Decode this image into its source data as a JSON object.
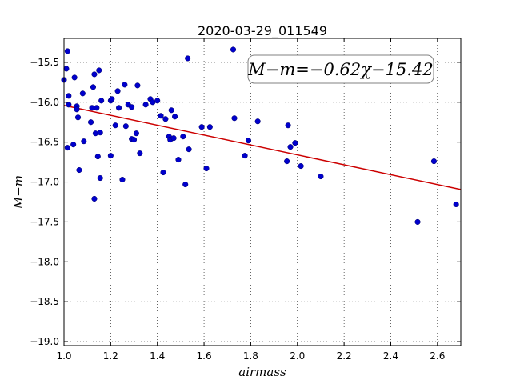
{
  "chart_data": {
    "type": "scatter",
    "title": "2020-03-29_011549",
    "xlabel": "airmass",
    "ylabel": "M−m",
    "xlim": [
      1.0,
      2.7
    ],
    "ylim": [
      -19.05,
      -15.2
    ],
    "x_ticks": [
      1.0,
      1.2,
      1.4,
      1.6,
      1.8,
      2.0,
      2.2,
      2.4,
      2.6
    ],
    "x_tick_labels": [
      "1.0",
      "1.2",
      "1.4",
      "1.6",
      "1.8",
      "2.0",
      "2.2",
      "2.4",
      "2.6"
    ],
    "y_ticks": [
      -15.5,
      -16.0,
      -16.5,
      -17.0,
      -17.5,
      -18.0,
      -18.5,
      -19.0
    ],
    "y_tick_labels": [
      "−15.5",
      "−16.0",
      "−16.5",
      "−17.0",
      "−17.5",
      "−18.0",
      "−18.5",
      "−19.0"
    ],
    "grid": true,
    "point_color": "#0000cc",
    "fit_color": "#cc0000",
    "fit": {
      "slope": -0.62,
      "intercept": -15.42
    },
    "annotation": "M−m=−0.62χ−15.42",
    "points": [
      [
        1.0,
        -15.72
      ],
      [
        1.01,
        -15.58
      ],
      [
        1.015,
        -15.36
      ],
      [
        1.02,
        -15.92
      ],
      [
        1.02,
        -16.03
      ],
      [
        1.015,
        -16.57
      ],
      [
        1.04,
        -16.53
      ],
      [
        1.045,
        -15.69
      ],
      [
        1.055,
        -16.05
      ],
      [
        1.055,
        -16.09
      ],
      [
        1.06,
        -16.19
      ],
      [
        1.065,
        -16.85
      ],
      [
        1.08,
        -15.89
      ],
      [
        1.085,
        -16.49
      ],
      [
        1.115,
        -16.25
      ],
      [
        1.12,
        -16.07
      ],
      [
        1.125,
        -15.81
      ],
      [
        1.13,
        -15.65
      ],
      [
        1.14,
        -16.07
      ],
      [
        1.135,
        -16.39
      ],
      [
        1.13,
        -17.21
      ],
      [
        1.145,
        -16.68
      ],
      [
        1.15,
        -15.6
      ],
      [
        1.155,
        -16.38
      ],
      [
        1.155,
        -16.95
      ],
      [
        1.16,
        -15.98
      ],
      [
        1.2,
        -15.98
      ],
      [
        1.205,
        -15.96
      ],
      [
        1.2,
        -16.67
      ],
      [
        1.22,
        -16.29
      ],
      [
        1.23,
        -15.86
      ],
      [
        1.235,
        -16.07
      ],
      [
        1.25,
        -16.97
      ],
      [
        1.26,
        -15.78
      ],
      [
        1.265,
        -16.3
      ],
      [
        1.275,
        -16.03
      ],
      [
        1.29,
        -16.06
      ],
      [
        1.29,
        -16.46
      ],
      [
        1.3,
        -16.47
      ],
      [
        1.31,
        -16.39
      ],
      [
        1.315,
        -15.79
      ],
      [
        1.325,
        -16.64
      ],
      [
        1.35,
        -16.03
      ],
      [
        1.37,
        -15.96
      ],
      [
        1.38,
        -16.0
      ],
      [
        1.4,
        -15.98
      ],
      [
        1.415,
        -16.17
      ],
      [
        1.425,
        -16.88
      ],
      [
        1.435,
        -16.21
      ],
      [
        1.45,
        -16.43
      ],
      [
        1.455,
        -16.47
      ],
      [
        1.46,
        -16.1
      ],
      [
        1.47,
        -16.45
      ],
      [
        1.475,
        -16.18
      ],
      [
        1.49,
        -16.72
      ],
      [
        1.51,
        -16.43
      ],
      [
        1.52,
        -17.03
      ],
      [
        1.53,
        -15.45
      ],
      [
        1.535,
        -16.59
      ],
      [
        1.59,
        -16.31
      ],
      [
        1.61,
        -16.83
      ],
      [
        1.625,
        -16.31
      ],
      [
        1.725,
        -15.34
      ],
      [
        1.73,
        -16.2
      ],
      [
        1.775,
        -16.67
      ],
      [
        1.79,
        -16.48
      ],
      [
        1.83,
        -16.24
      ],
      [
        1.955,
        -16.74
      ],
      [
        1.96,
        -16.29
      ],
      [
        1.97,
        -16.56
      ],
      [
        1.99,
        -16.51
      ],
      [
        2.015,
        -16.8
      ],
      [
        2.1,
        -16.93
      ],
      [
        2.515,
        -17.5
      ],
      [
        2.585,
        -16.74
      ],
      [
        2.68,
        -17.28
      ]
    ]
  }
}
